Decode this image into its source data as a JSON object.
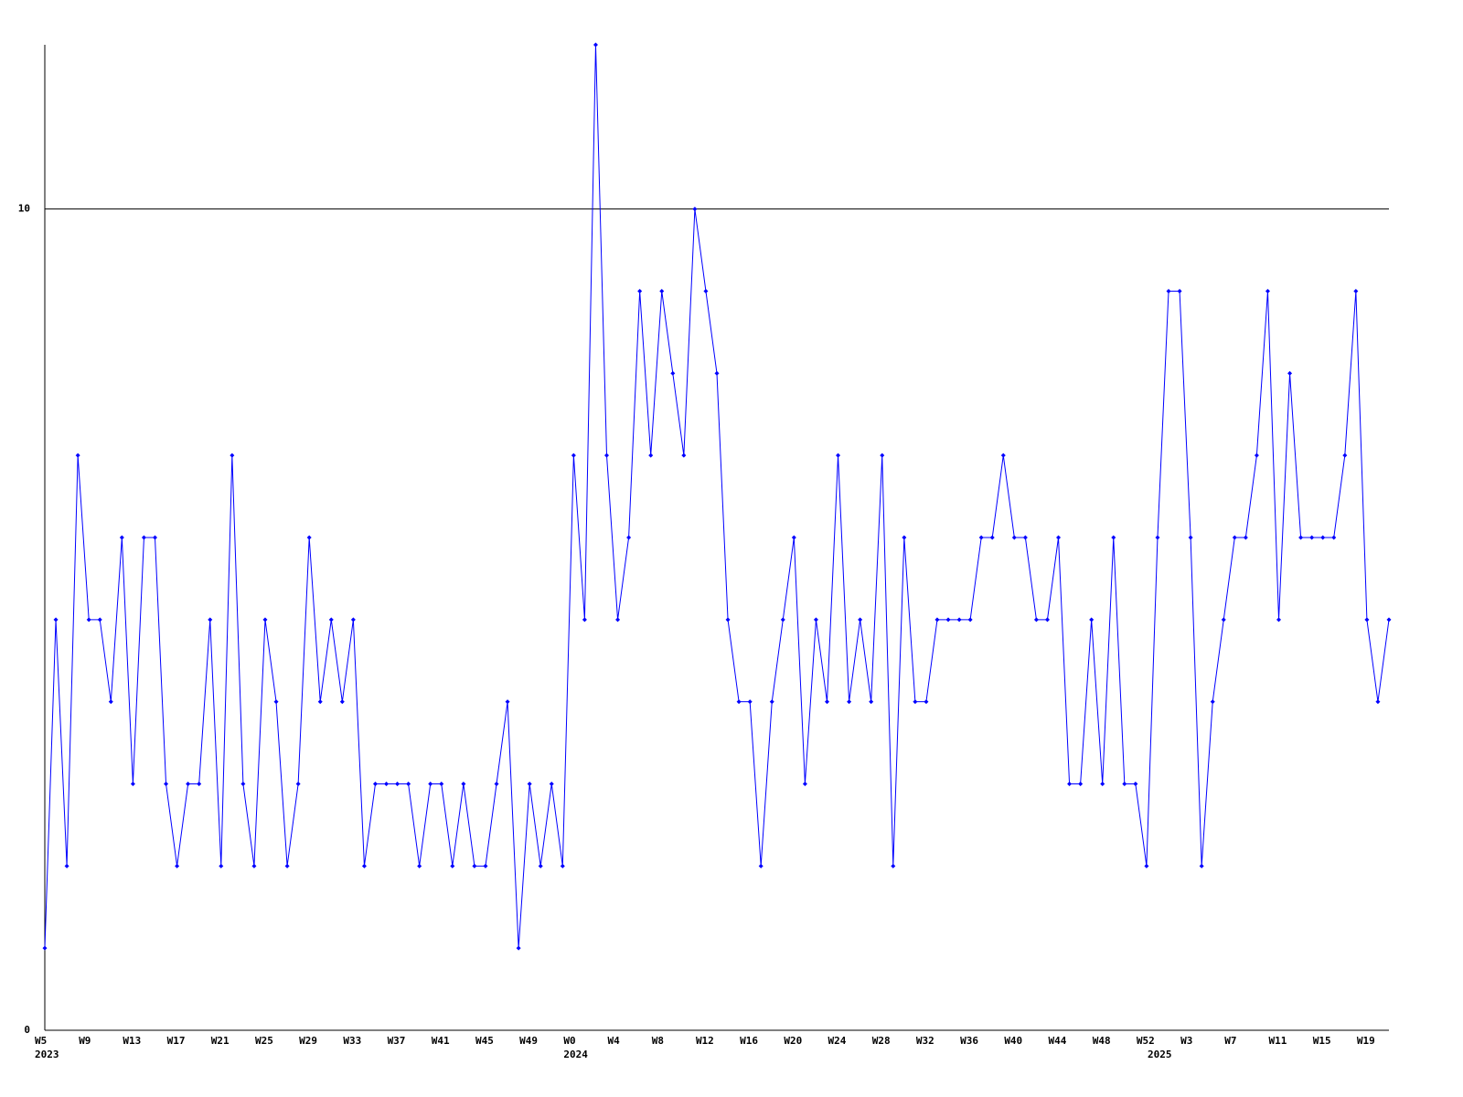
{
  "chart_data": {
    "type": "line",
    "color": "#0000ff",
    "categories": [
      "W5",
      null,
      null,
      null,
      "W9",
      null,
      null,
      null,
      "W13",
      null,
      null,
      null,
      "W17",
      null,
      null,
      null,
      "W21",
      null,
      null,
      null,
      "W25",
      null,
      null,
      null,
      "W29",
      null,
      null,
      null,
      "W33",
      null,
      null,
      null,
      "W37",
      null,
      null,
      null,
      "W41",
      null,
      null,
      null,
      "W45",
      null,
      null,
      null,
      "W49",
      null,
      null,
      null,
      "W0",
      null,
      null,
      null,
      "W4",
      null,
      null,
      null,
      "W8",
      null,
      null,
      null,
      "W12",
      null,
      null,
      null,
      "W16",
      null,
      null,
      null,
      "W20",
      null,
      null,
      null,
      "W24",
      null,
      null,
      null,
      "W28",
      null,
      null,
      null,
      "W32",
      null,
      null,
      null,
      "W36",
      null,
      null,
      null,
      "W40",
      null,
      null,
      null,
      "W44",
      null,
      null,
      null,
      "W48",
      null,
      null,
      null,
      "W52",
      null,
      null,
      null,
      "W3",
      null,
      null,
      null,
      "W7",
      null,
      null,
      null,
      "W11",
      null,
      null,
      null,
      "W15",
      null,
      null,
      null,
      "W19",
      null,
      null
    ],
    "year_labels": [
      "2023",
      null,
      null,
      null,
      null,
      null,
      null,
      null,
      null,
      null,
      null,
      null,
      null,
      null,
      null,
      null,
      null,
      null,
      null,
      null,
      null,
      null,
      null,
      null,
      null,
      null,
      null,
      null,
      null,
      null,
      null,
      null,
      null,
      null,
      null,
      null,
      null,
      null,
      null,
      null,
      null,
      null,
      null,
      null,
      null,
      null,
      null,
      null,
      "2024",
      null,
      null,
      null,
      null,
      null,
      null,
      null,
      null,
      null,
      null,
      null,
      null,
      null,
      null,
      null,
      null,
      null,
      null,
      null,
      null,
      null,
      null,
      null,
      null,
      null,
      null,
      null,
      null,
      null,
      null,
      null,
      null,
      null,
      null,
      null,
      null,
      null,
      null,
      null,
      null,
      null,
      null,
      null,
      null,
      null,
      null,
      null,
      null,
      null,
      null,
      null,
      null,
      "2025",
      null,
      null,
      null,
      null,
      null,
      null,
      null,
      null,
      null,
      null,
      null,
      null,
      null,
      null,
      null,
      null,
      null,
      null,
      null,
      null
    ],
    "values": [
      1,
      5,
      2,
      7,
      5,
      5,
      4,
      6,
      3,
      6,
      6,
      3,
      2,
      3,
      3,
      5,
      2,
      7,
      3,
      2,
      5,
      4,
      2,
      3,
      6,
      4,
      5,
      4,
      5,
      2,
      3,
      3,
      3,
      3,
      2,
      3,
      3,
      2,
      3,
      2,
      2,
      3,
      4,
      1,
      3,
      2,
      3,
      2,
      7,
      5,
      12,
      7,
      5,
      6,
      9,
      7,
      9,
      8,
      7,
      10,
      9,
      8,
      5,
      4,
      4,
      2,
      4,
      5,
      6,
      3,
      5,
      4,
      7,
      4,
      5,
      4,
      7,
      2,
      6,
      4,
      4,
      5,
      5,
      5,
      5,
      6,
      6,
      7,
      6,
      6,
      5,
      5,
      6,
      3,
      3,
      5,
      3,
      6,
      3,
      3,
      2,
      6,
      9,
      9,
      6,
      2,
      4,
      5,
      6,
      6,
      7,
      9,
      5,
      8,
      6,
      6,
      6,
      6,
      7,
      9,
      5,
      4,
      5
    ],
    "ylim": [
      0,
      12
    ],
    "yticks": [
      0,
      10
    ],
    "grid": true
  }
}
